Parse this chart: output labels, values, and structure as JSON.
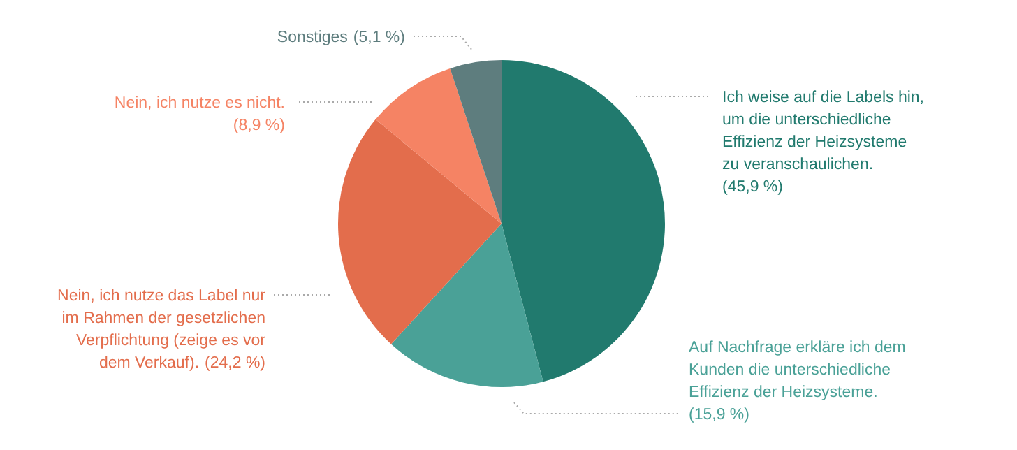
{
  "chart_data": {
    "type": "pie",
    "categories": [
      "Ich weise auf die Labels hin, um die unterschiedliche Effizienz der Heizsysteme zu veranschaulichen.",
      "Auf Nachfrage erkläre ich dem Kunden die unterschiedliche Effizienz der Heizsysteme.",
      "Nein, ich nutze das Label nur im Rahmen der gesetzlichen Verpflichtung (zeige es vor dem Verkauf).",
      "Nein, ich nutze es nicht.",
      "Sonstiges"
    ],
    "values": [
      45.9,
      15.9,
      24.2,
      8.9,
      5.1
    ],
    "colors": [
      "#217a6e",
      "#4aa197",
      "#e36d4c",
      "#f58364",
      "#5e7d7e"
    ],
    "value_labels": [
      "(45,9 %)",
      "(15,9 %)",
      "(24,2 %)",
      "(8,9 %)",
      "(5,1 %)"
    ]
  }
}
